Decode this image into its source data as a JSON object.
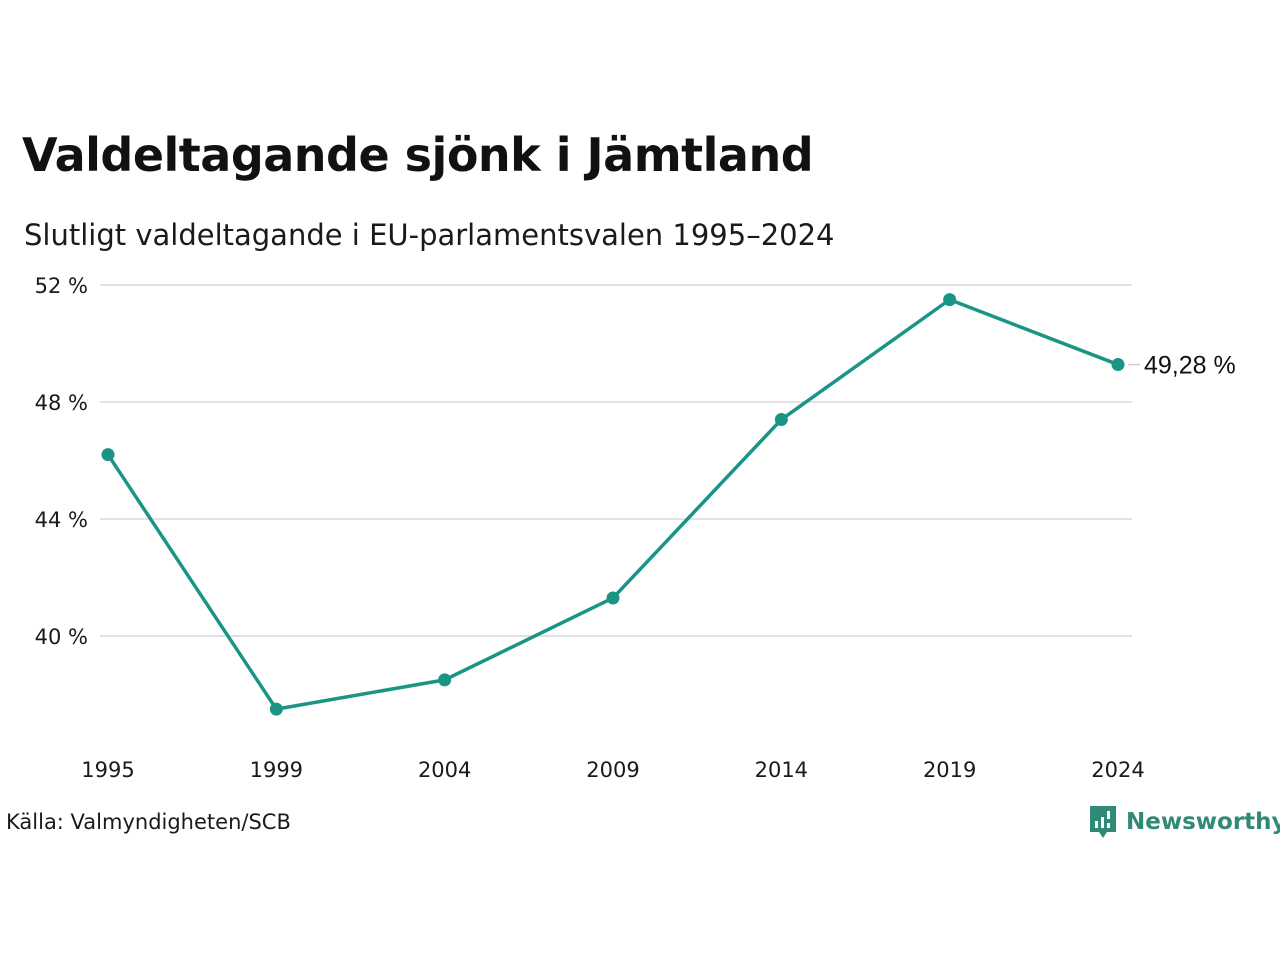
{
  "title": "Valdeltagande sjönk i Jämtland",
  "subtitle": "Slutligt valdeltagande i EU-parlamentsvalen 1995–2024",
  "source": "Källa: Valmyndigheten/SCB",
  "brand": {
    "name": "Newsworthy",
    "icon": "bar-chart-badge-icon",
    "color": "#2f8a78"
  },
  "chart_data": {
    "type": "line",
    "x": [
      "1995",
      "1999",
      "2004",
      "2009",
      "2014",
      "2019",
      "2024"
    ],
    "series": [
      {
        "values": [
          46.2,
          37.5,
          38.5,
          41.3,
          47.4,
          51.5,
          49.28
        ],
        "color": "#1a9585"
      }
    ],
    "ylim": [
      37,
      52
    ],
    "yticks": [
      40,
      44,
      48,
      52
    ],
    "ytick_labels": [
      "40 %",
      "44 %",
      "48 %",
      "52 %"
    ],
    "end_label": "49,28 %",
    "grid": "horizontal"
  }
}
